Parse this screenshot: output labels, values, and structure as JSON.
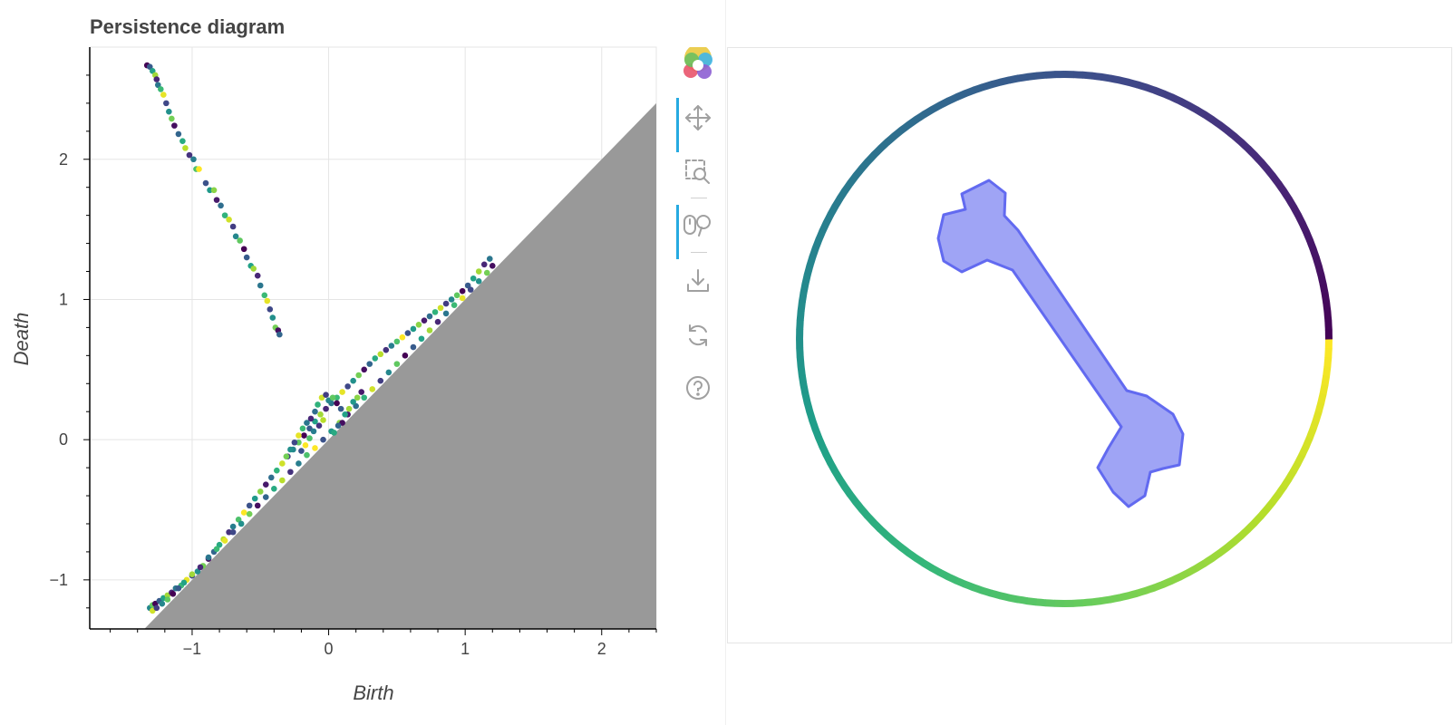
{
  "chart_data": {
    "type": "scatter",
    "title": "Persistence diagram",
    "xlabel": "Birth",
    "ylabel": "Death",
    "xlim": [
      -1.75,
      2.4
    ],
    "ylim": [
      -1.35,
      2.8
    ],
    "xticks": [
      -1,
      0,
      1,
      2
    ],
    "yticks": [
      -1,
      0,
      1,
      2
    ],
    "grid": true,
    "diagonal_region": {
      "description_color": "#999999",
      "rule": "death <= birth"
    },
    "colormap": "viridis",
    "series": [
      {
        "points": [
          [
            -1.33,
            2.67
          ],
          [
            -1.31,
            2.66
          ],
          [
            -1.29,
            2.63
          ],
          [
            -1.27,
            2.6
          ],
          [
            -1.26,
            2.57
          ],
          [
            -1.25,
            2.53
          ],
          [
            -1.23,
            2.5
          ],
          [
            -1.21,
            2.46
          ],
          [
            -1.19,
            2.4
          ],
          [
            -1.17,
            2.34
          ],
          [
            -1.15,
            2.29
          ],
          [
            -1.13,
            2.24
          ],
          [
            -1.1,
            2.18
          ],
          [
            -1.07,
            2.13
          ],
          [
            -1.05,
            2.08
          ],
          [
            -1.02,
            2.03
          ],
          [
            -0.99,
            2.0
          ],
          [
            -0.97,
            1.93
          ],
          [
            -0.95,
            1.93
          ],
          [
            -0.9,
            1.83
          ],
          [
            -0.87,
            1.78
          ],
          [
            -0.84,
            1.78
          ],
          [
            -0.82,
            1.71
          ],
          [
            -0.79,
            1.67
          ],
          [
            -0.76,
            1.6
          ],
          [
            -0.73,
            1.57
          ],
          [
            -0.7,
            1.52
          ],
          [
            -0.68,
            1.45
          ],
          [
            -0.65,
            1.42
          ],
          [
            -0.62,
            1.36
          ],
          [
            -0.6,
            1.3
          ],
          [
            -0.57,
            1.24
          ],
          [
            -0.55,
            1.22
          ],
          [
            -0.52,
            1.17
          ],
          [
            -0.5,
            1.1
          ],
          [
            -0.47,
            1.03
          ],
          [
            -0.45,
            0.99
          ],
          [
            -0.43,
            0.93
          ],
          [
            -0.41,
            0.87
          ],
          [
            -0.39,
            0.8
          ],
          [
            -0.37,
            0.78
          ],
          [
            -0.36,
            0.75
          ]
        ]
      },
      {
        "points": [
          [
            -1.31,
            -1.2
          ],
          [
            -1.29,
            -1.18
          ],
          [
            -1.27,
            -1.17
          ],
          [
            -1.24,
            -1.15
          ],
          [
            -1.21,
            -1.13
          ],
          [
            -1.18,
            -1.11
          ],
          [
            -1.15,
            -1.09
          ],
          [
            -1.12,
            -1.06
          ],
          [
            -1.08,
            -1.04
          ],
          [
            -1.04,
            -1.0
          ],
          [
            -1.0,
            -0.97
          ],
          [
            -0.96,
            -0.94
          ],
          [
            -0.92,
            -0.9
          ],
          [
            -0.88,
            -0.85
          ],
          [
            -0.84,
            -0.8
          ],
          [
            -0.8,
            -0.75
          ],
          [
            -0.77,
            -0.71
          ],
          [
            -0.73,
            -0.66
          ],
          [
            -0.7,
            -0.62
          ],
          [
            -0.66,
            -0.57
          ],
          [
            -0.62,
            -0.52
          ],
          [
            -0.58,
            -0.47
          ],
          [
            -0.54,
            -0.42
          ],
          [
            -0.5,
            -0.37
          ],
          [
            -0.46,
            -0.32
          ],
          [
            -0.42,
            -0.27
          ],
          [
            -0.38,
            -0.22
          ],
          [
            -0.34,
            -0.17
          ],
          [
            -0.3,
            -0.12
          ],
          [
            -0.26,
            -0.07
          ],
          [
            -0.22,
            -0.02
          ],
          [
            -0.18,
            0.03
          ],
          [
            -0.14,
            0.08
          ],
          [
            -0.1,
            0.13
          ],
          [
            -0.06,
            0.18
          ],
          [
            -0.02,
            0.22
          ],
          [
            0.02,
            0.26
          ],
          [
            0.06,
            0.3
          ],
          [
            0.1,
            0.34
          ],
          [
            0.14,
            0.38
          ],
          [
            0.18,
            0.42
          ],
          [
            0.22,
            0.46
          ],
          [
            0.26,
            0.5
          ],
          [
            0.3,
            0.54
          ],
          [
            0.34,
            0.58
          ],
          [
            0.38,
            0.61
          ],
          [
            0.42,
            0.64
          ],
          [
            0.46,
            0.67
          ],
          [
            0.5,
            0.7
          ],
          [
            0.54,
            0.73
          ],
          [
            0.58,
            0.76
          ],
          [
            0.62,
            0.79
          ],
          [
            0.66,
            0.82
          ],
          [
            0.7,
            0.85
          ],
          [
            0.74,
            0.88
          ],
          [
            0.78,
            0.91
          ],
          [
            0.82,
            0.94
          ],
          [
            0.86,
            0.97
          ],
          [
            0.9,
            1.0
          ],
          [
            0.94,
            1.03
          ],
          [
            0.98,
            1.06
          ],
          [
            1.02,
            1.1
          ],
          [
            1.06,
            1.15
          ],
          [
            1.1,
            1.2
          ],
          [
            1.14,
            1.25
          ],
          [
            1.18,
            1.29
          ]
        ]
      },
      {
        "points": [
          [
            -1.29,
            -1.22
          ],
          [
            -1.26,
            -1.2
          ],
          [
            -1.22,
            -1.17
          ],
          [
            -1.18,
            -1.14
          ],
          [
            -1.14,
            -1.1
          ],
          [
            -1.1,
            -1.06
          ],
          [
            -1.06,
            -1.02
          ],
          [
            -1.0,
            -0.96
          ],
          [
            -0.94,
            -0.91
          ],
          [
            -0.88,
            -0.84
          ],
          [
            -0.82,
            -0.78
          ],
          [
            -0.76,
            -0.72
          ],
          [
            -0.7,
            -0.66
          ],
          [
            -0.64,
            -0.6
          ],
          [
            -0.58,
            -0.53
          ],
          [
            -0.52,
            -0.47
          ],
          [
            -0.46,
            -0.41
          ],
          [
            -0.4,
            -0.35
          ],
          [
            -0.34,
            -0.29
          ],
          [
            -0.28,
            -0.23
          ],
          [
            -0.22,
            -0.17
          ],
          [
            -0.16,
            -0.11
          ],
          [
            -0.1,
            -0.06
          ],
          [
            -0.04,
            0.0
          ],
          [
            0.02,
            0.06
          ],
          [
            0.08,
            0.12
          ],
          [
            0.14,
            0.18
          ],
          [
            0.2,
            0.24
          ],
          [
            0.26,
            0.3
          ],
          [
            0.32,
            0.36
          ],
          [
            0.38,
            0.42
          ],
          [
            0.44,
            0.48
          ],
          [
            0.5,
            0.54
          ],
          [
            0.56,
            0.6
          ],
          [
            0.62,
            0.66
          ],
          [
            0.68,
            0.72
          ],
          [
            0.74,
            0.78
          ],
          [
            0.8,
            0.84
          ],
          [
            0.86,
            0.9
          ],
          [
            0.92,
            0.96
          ],
          [
            0.98,
            1.01
          ],
          [
            1.04,
            1.07
          ],
          [
            1.1,
            1.13
          ],
          [
            1.16,
            1.19
          ],
          [
            1.2,
            1.24
          ]
        ]
      },
      {
        "points": [
          [
            -0.1,
            0.2
          ],
          [
            -0.08,
            0.25
          ],
          [
            -0.05,
            0.3
          ],
          [
            -0.02,
            0.32
          ],
          [
            0.0,
            0.28
          ],
          [
            0.03,
            0.3
          ],
          [
            0.06,
            0.26
          ],
          [
            0.09,
            0.22
          ],
          [
            0.12,
            0.18
          ],
          [
            0.15,
            0.22
          ],
          [
            -0.13,
            0.15
          ],
          [
            -0.16,
            0.12
          ],
          [
            -0.19,
            0.08
          ],
          [
            -0.22,
            0.03
          ],
          [
            -0.25,
            -0.02
          ],
          [
            -0.28,
            -0.07
          ],
          [
            -0.31,
            -0.12
          ],
          [
            0.1,
            0.12
          ],
          [
            0.07,
            0.1
          ],
          [
            0.04,
            0.05
          ],
          [
            -0.04,
            0.14
          ],
          [
            -0.07,
            0.1
          ],
          [
            -0.11,
            0.06
          ],
          [
            -0.14,
            0.01
          ],
          [
            -0.17,
            -0.04
          ],
          [
            -0.2,
            -0.08
          ],
          [
            0.18,
            0.27
          ],
          [
            0.21,
            0.3
          ],
          [
            0.24,
            0.34
          ]
        ]
      }
    ]
  },
  "toolbar": {
    "tools": [
      {
        "name": "bokeh-logo"
      },
      {
        "name": "pan-tool"
      },
      {
        "name": "box-zoom-tool"
      },
      {
        "name": "wheel-zoom-tool"
      },
      {
        "name": "save-tool"
      },
      {
        "name": "reset-tool"
      },
      {
        "name": "help-tool"
      }
    ]
  },
  "ring": {
    "colormap": "viridis",
    "shape_fill": "#9aa0f5",
    "shape_stroke": "#5a63f0"
  }
}
